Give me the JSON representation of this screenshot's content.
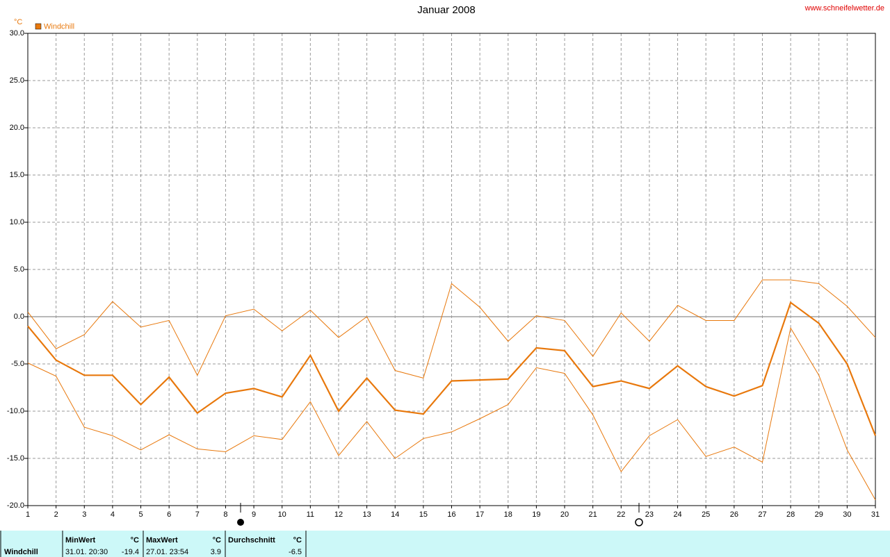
{
  "chart_data": {
    "type": "line",
    "title": "Januar 2008",
    "source": "www.schneifelwetter.de",
    "ylabel": "°C",
    "categories": [
      "1",
      "2",
      "3",
      "4",
      "5",
      "6",
      "7",
      "8",
      "9",
      "10",
      "11",
      "12",
      "13",
      "14",
      "15",
      "16",
      "17",
      "18",
      "19",
      "20",
      "21",
      "22",
      "23",
      "24",
      "25",
      "26",
      "27",
      "28",
      "29",
      "30",
      "31"
    ],
    "series": [
      {
        "name": "Windchill",
        "color": "#e8780c",
        "values": [
          -1.0,
          -4.6,
          -6.2,
          -6.2,
          -9.3,
          -6.4,
          -10.2,
          -8.1,
          -7.6,
          -8.5,
          -4.1,
          -10.0,
          -6.5,
          -9.9,
          -10.3,
          -6.8,
          -6.7,
          -6.6,
          -3.3,
          -3.6,
          -7.4,
          -6.8,
          -7.6,
          -5.2,
          -7.4,
          -8.4,
          -7.3,
          1.5,
          -0.7,
          -5.0,
          -12.6
        ]
      },
      {
        "color": "#e8780c",
        "values": [
          0.5,
          -3.4,
          -1.9,
          1.6,
          -1.1,
          -0.4,
          -6.2,
          0.1,
          0.8,
          -1.5,
          0.7,
          -2.2,
          0.0,
          -5.7,
          -6.5,
          3.5,
          1.0,
          -2.6,
          0.1,
          -0.4,
          -4.2,
          0.4,
          -2.6,
          1.2,
          -0.4,
          -0.4,
          3.9,
          3.9,
          3.5,
          1.1,
          -2.2
        ]
      },
      {
        "color": "#e8780c",
        "values": [
          -4.9,
          -6.3,
          -11.7,
          -12.6,
          -14.1,
          -12.5,
          -14.0,
          -14.3,
          -12.6,
          -13.0,
          -9.0,
          -14.7,
          -11.1,
          -15.0,
          -12.9,
          -12.2,
          -10.8,
          -9.3,
          -5.4,
          -6.0,
          -10.4,
          -16.4,
          -12.6,
          -10.9,
          -14.8,
          -13.8,
          -15.4,
          -1.2,
          -6.2,
          -14.1,
          -19.4
        ]
      }
    ],
    "ylim": [
      -20,
      30
    ],
    "yticks": [
      {
        "value": -20,
        "label": "-20.0"
      },
      {
        "value": -15,
        "label": "-15.0"
      },
      {
        "value": -10,
        "label": "-10.0"
      },
      {
        "value": -5,
        "label": "-5.0"
      },
      {
        "value": 0,
        "label": "0.0"
      },
      {
        "value": 5,
        "label": "5.0"
      },
      {
        "value": 10,
        "label": "10.0"
      },
      {
        "value": 15,
        "label": "15.0"
      },
      {
        "value": 20,
        "label": "20.0"
      },
      {
        "value": 25,
        "label": "25.0"
      },
      {
        "value": 30,
        "label": "30.0"
      }
    ],
    "grid": true
  },
  "summary": {
    "label": "Windchill",
    "columns": [
      {
        "header": "MinWert",
        "unit": "°C",
        "date": "31.01.  20:30",
        "value": -19.4
      },
      {
        "header": "MaxWert",
        "unit": "°C",
        "date": "27.01.  23:54",
        "value": 3.9
      },
      {
        "header": "Durchschnitt",
        "unit": "°C",
        "value": -6.5
      }
    ]
  }
}
